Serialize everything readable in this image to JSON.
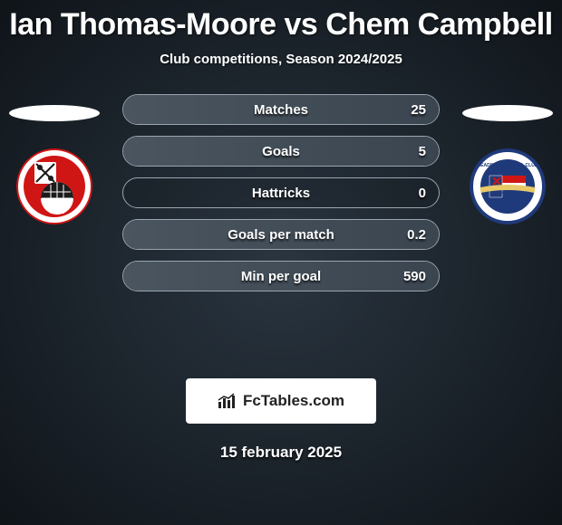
{
  "title": {
    "text": "Ian Thomas-Moore vs Chem Campbell",
    "fontsize": 34,
    "color": "#ffffff"
  },
  "subtitle": {
    "text": "Club competitions, Season 2024/2025",
    "fontsize": 15,
    "color": "#ffffff"
  },
  "ellipse": {
    "color": "#ffffff",
    "width": 100,
    "height": 18
  },
  "logos": {
    "left": {
      "name": "Rotherham United",
      "bg": "#ffffff",
      "accent": "#d01515",
      "inner": "#1b1b1b"
    },
    "right": {
      "name": "Reading FC",
      "bg": "#ffffff",
      "accent": "#1f3a7a",
      "stripe1": "#d01515",
      "stripe2": "#ffffff"
    }
  },
  "rows": [
    {
      "label": "Matches",
      "right": "25",
      "fill_pct": 100
    },
    {
      "label": "Goals",
      "right": "5",
      "fill_pct": 100
    },
    {
      "label": "Hattricks",
      "right": "0",
      "fill_pct": 0
    },
    {
      "label": "Goals per match",
      "right": "0.2",
      "fill_pct": 100
    },
    {
      "label": "Min per goal",
      "right": "590",
      "fill_pct": 100
    }
  ],
  "row_style": {
    "height": 34,
    "gap": 12,
    "radius": 17,
    "border_color": "#9aa5b0",
    "fill_from": "#4a5560",
    "fill_to": "#3a4550",
    "label_fontsize": 15,
    "value_fontsize": 15
  },
  "watermark": {
    "text": "FcTables.com",
    "fontsize": 17,
    "bg": "#ffffff",
    "color": "#222222"
  },
  "date": {
    "text": "15 february 2025",
    "fontsize": 17,
    "color": "#ffffff"
  },
  "background": {
    "from": "#2a3540",
    "to": "#0f1419"
  }
}
